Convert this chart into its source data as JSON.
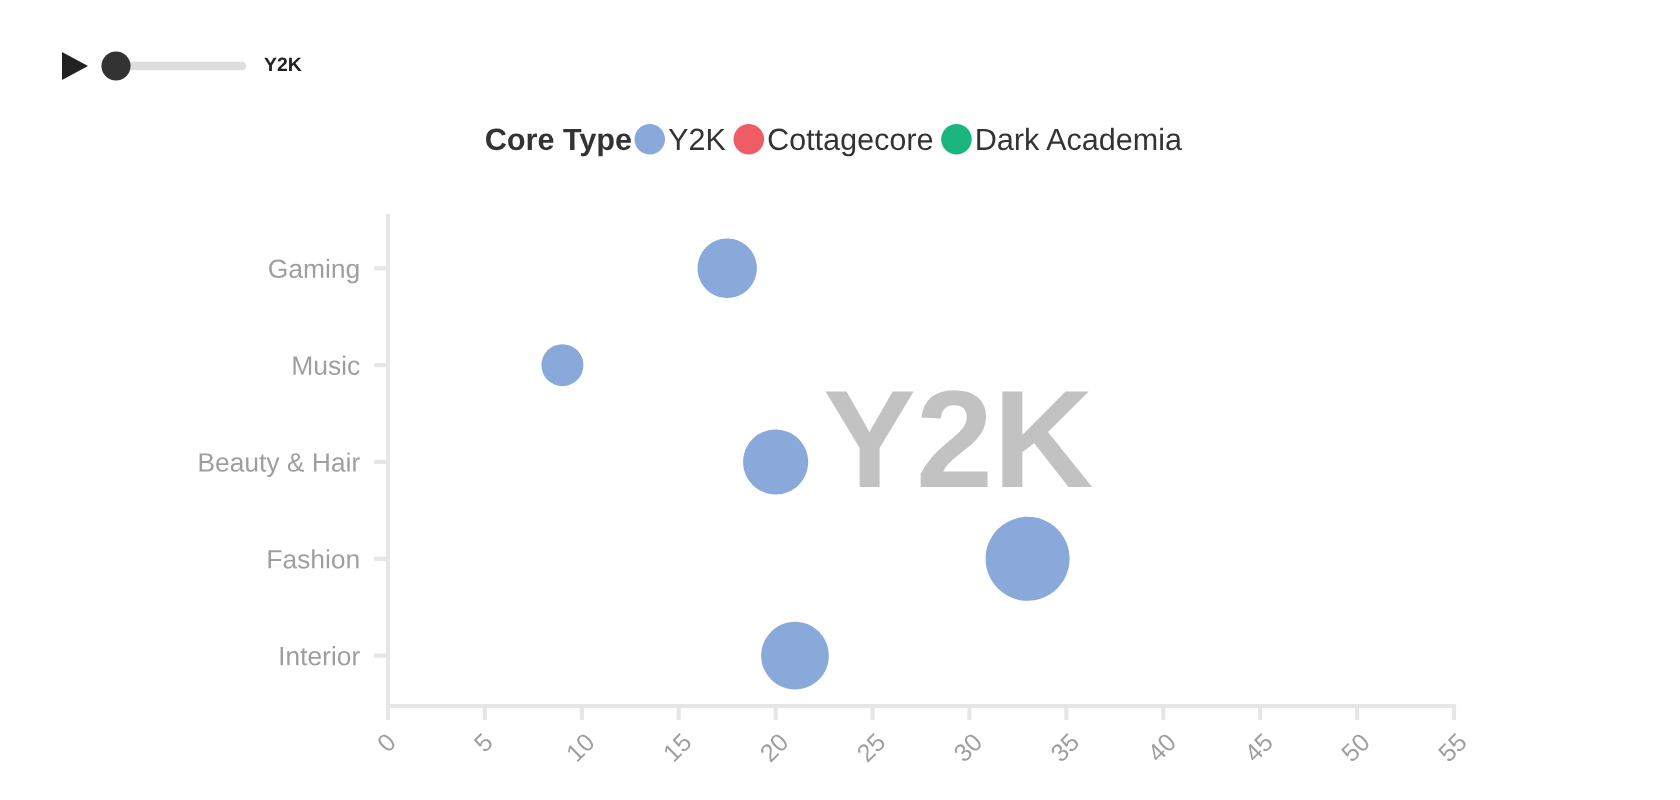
{
  "chart_data": {
    "type": "bubble",
    "orientation": "horizontal",
    "legend_title": "Core Type",
    "legend": "top",
    "marker": "circle",
    "categories": [
      "Gaming",
      "Music",
      "Beauty & Hair",
      "Fashion",
      "Interior"
    ],
    "series": [
      {
        "name": "Y2K",
        "color": "#88a9da",
        "values": [
          17.5,
          9,
          20,
          33,
          21
        ],
        "sizes": [
          0.5,
          0.25,
          0.6,
          1,
          0.65
        ]
      },
      {
        "name": "Cottagecore",
        "color": "#ee5c66",
        "values": [
          null,
          null,
          null,
          null,
          null
        ]
      },
      {
        "name": "Dark Academia",
        "color": "#1bb57e",
        "values": [
          null,
          null,
          null,
          null,
          null
        ]
      }
    ],
    "xlim": [
      0,
      55
    ],
    "xticks": [
      0,
      5,
      10,
      15,
      20,
      25,
      30,
      35,
      40,
      45,
      50,
      55
    ],
    "annotations": [
      "Y2K",
      "Y2K"
    ]
  }
}
